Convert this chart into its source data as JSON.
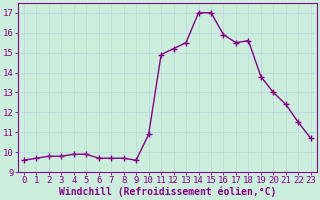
{
  "x": [
    0,
    1,
    2,
    3,
    4,
    5,
    6,
    7,
    8,
    9,
    10,
    11,
    12,
    13,
    14,
    15,
    16,
    17,
    18,
    19,
    20,
    21,
    22,
    23
  ],
  "y": [
    9.6,
    9.7,
    9.8,
    9.8,
    9.9,
    9.9,
    9.7,
    9.7,
    9.7,
    9.6,
    10.9,
    14.9,
    15.2,
    15.5,
    17.0,
    17.0,
    15.9,
    15.5,
    15.6,
    13.8,
    13.0,
    12.4,
    11.5,
    10.7
  ],
  "line_color": "#880088",
  "marker": "+",
  "markersize": 4,
  "linewidth": 1.0,
  "markeredgewidth": 1.0,
  "xlabel": "Windchill (Refroidissement éolien,°C)",
  "ylabel": "",
  "xlim": [
    -0.5,
    23.5
  ],
  "ylim": [
    9,
    17.5
  ],
  "yticks": [
    9,
    10,
    11,
    12,
    13,
    14,
    15,
    16,
    17
  ],
  "xticks": [
    0,
    1,
    2,
    3,
    4,
    5,
    6,
    7,
    8,
    9,
    10,
    11,
    12,
    13,
    14,
    15,
    16,
    17,
    18,
    19,
    20,
    21,
    22,
    23
  ],
  "bg_color": "#cceedd",
  "grid_color": "#bbdddd",
  "tick_label_color": "#880088",
  "xlabel_color": "#880088",
  "xlabel_fontsize": 7,
  "tick_fontsize": 6.5,
  "spine_color": "#880088",
  "figwidth": 3.2,
  "figheight": 2.0,
  "dpi": 100
}
